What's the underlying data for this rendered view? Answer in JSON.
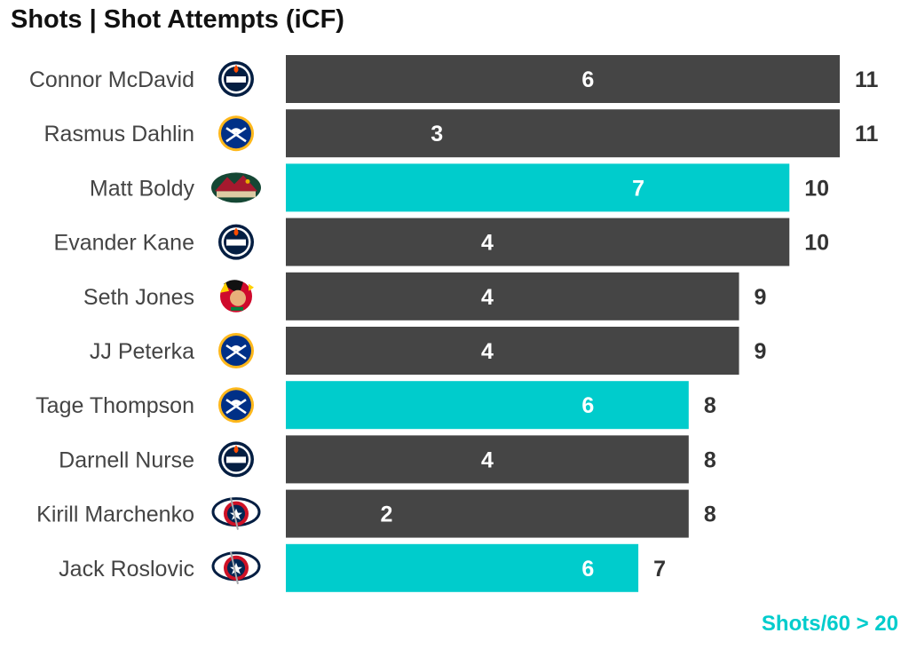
{
  "title": "Shots | Shot Attempts (iCF)",
  "footnote": "Shots/60 > 20",
  "colors": {
    "default_bar": "#454545",
    "highlight_bar": "#00CCCC",
    "footnote": "#00CCCC"
  },
  "chart_data": {
    "type": "bar",
    "orientation": "horizontal",
    "categories": [
      "Connor McDavid",
      "Rasmus Dahlin",
      "Matt Boldy",
      "Evander Kane",
      "Seth Jones",
      "JJ Peterka",
      "Tage Thompson",
      "Darnell Nurse",
      "Kirill Marchenko",
      "Jack Roslovic"
    ],
    "teams": [
      "oilers",
      "sabres",
      "wild",
      "oilers",
      "blackhawks",
      "sabres",
      "sabres",
      "oilers",
      "blue-jackets",
      "blue-jackets"
    ],
    "series": [
      {
        "name": "Shots",
        "values": [
          6,
          3,
          7,
          4,
          4,
          4,
          6,
          4,
          2,
          6
        ]
      },
      {
        "name": "Shot Attempts (iCF)",
        "values": [
          11,
          11,
          10,
          10,
          9,
          9,
          8,
          8,
          8,
          7
        ]
      }
    ],
    "highlighted": [
      false,
      false,
      true,
      false,
      false,
      false,
      true,
      false,
      false,
      true
    ],
    "xlim": [
      0,
      11
    ],
    "grid": false,
    "legend": "none"
  }
}
